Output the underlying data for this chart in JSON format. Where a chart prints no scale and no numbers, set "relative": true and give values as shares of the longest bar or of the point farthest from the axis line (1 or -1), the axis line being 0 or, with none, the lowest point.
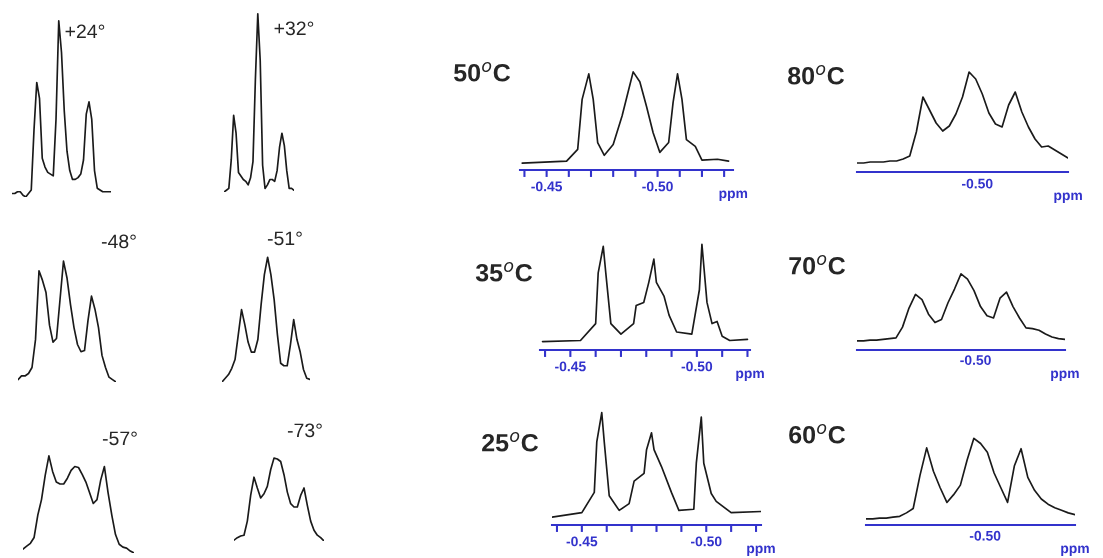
{
  "chart_data": [
    {
      "type": "line",
      "title": "+24°",
      "relative": true,
      "tick_labels": false,
      "categories": [
        null,
        null,
        null,
        null,
        null,
        null,
        null,
        null,
        null,
        null,
        null,
        null,
        null,
        null,
        null,
        null,
        null,
        null,
        null,
        null,
        null,
        null,
        null,
        null,
        null,
        null,
        null,
        null,
        null,
        null,
        null,
        null,
        null,
        null,
        null,
        null,
        null
      ],
      "series": [
        {
          "color": "#1a1a1a",
          "values": [
            0.02,
            0.02,
            0.03,
            0.03,
            0.01,
            0,
            0.02,
            0.04,
            0.38,
            0.65,
            0.56,
            0.22,
            0.17,
            0.14,
            0.13,
            0.12,
            0.44,
            1,
            0.82,
            0.49,
            0.26,
            0.15,
            0.1,
            0.1,
            0.11,
            0.13,
            0.21,
            0.47,
            0.54,
            0.44,
            0.15,
            0.05,
            0.04,
            0.03,
            0.03,
            0.03,
            0.03
          ]
        }
      ]
    },
    {
      "type": "line",
      "title": "+32°",
      "relative": true,
      "tick_labels": false,
      "categories": [
        null,
        null,
        null,
        null,
        null,
        null,
        null,
        null,
        null,
        null,
        null,
        null,
        null,
        null,
        null,
        null,
        null,
        null,
        null,
        null,
        null,
        null,
        null,
        null,
        null,
        null,
        null,
        null,
        null,
        null
      ],
      "series": [
        {
          "color": "#1a1a1a",
          "values": [
            0,
            0.01,
            0.02,
            0.18,
            0.43,
            0.33,
            0.11,
            0.09,
            0.07,
            0.06,
            0.04,
            0.08,
            0.17,
            0.63,
            1,
            0.74,
            0.15,
            0.02,
            0.04,
            0.07,
            0.07,
            0.06,
            0.12,
            0.25,
            0.33,
            0.26,
            0.12,
            0.02,
            0.02,
            0.01
          ]
        }
      ]
    },
    {
      "type": "line",
      "title": "50$^{o}$C",
      "relative": true,
      "tick_labels": "x",
      "xlabel": "ppm",
      "xlim": [
        -0.438,
        -0.534
      ],
      "xticks": [
        {
          "value": -0.44,
          "label": null
        },
        {
          "value": -0.45,
          "label": "-0.45"
        },
        {
          "value": -0.46,
          "label": null
        },
        {
          "value": -0.47,
          "label": null
        },
        {
          "value": -0.48,
          "label": null
        },
        {
          "value": -0.49,
          "label": null
        },
        {
          "value": -0.5,
          "label": "-0.50"
        },
        {
          "value": -0.51,
          "label": null
        },
        {
          "value": -0.52,
          "label": null
        },
        {
          "value": -0.53,
          "label": null
        }
      ],
      "series": [
        {
          "color": "#1a1a1a",
          "x": [
            -0.439,
            -0.459,
            -0.464,
            -0.466,
            -0.469,
            -0.471,
            -0.473,
            -0.476,
            -0.48,
            -0.484,
            -0.487,
            -0.489,
            -0.492,
            -0.495,
            -0.498,
            -0.501,
            -0.505,
            -0.507,
            -0.509,
            -0.511,
            -0.513,
            -0.517,
            -0.52,
            -0.527,
            -0.532
          ],
          "values": [
            0.07,
            0.09,
            0.21,
            0.72,
            0.98,
            0.72,
            0.28,
            0.15,
            0.26,
            0.55,
            0.82,
            1,
            0.9,
            0.65,
            0.38,
            0.18,
            0.28,
            0.69,
            0.98,
            0.72,
            0.31,
            0.24,
            0.1,
            0.11,
            0.09
          ]
        }
      ]
    },
    {
      "type": "line",
      "title": "80$^{o}$C",
      "relative": true,
      "tick_labels": false,
      "xlabel": "ppm",
      "annotations": [
        "-0.50"
      ],
      "categories": [
        null,
        null,
        null,
        null,
        null,
        null,
        null,
        null,
        null,
        null,
        null,
        null,
        null,
        null,
        null,
        null,
        null,
        null,
        null,
        null,
        null,
        null,
        null,
        null,
        null,
        null,
        null,
        null,
        null,
        null,
        null,
        null,
        null
      ],
      "series": [
        {
          "color": "#1a1a1a",
          "values": [
            0.09,
            0.09,
            0.1,
            0.1,
            0.1,
            0.11,
            0.11,
            0.13,
            0.16,
            0.4,
            0.75,
            0.62,
            0.49,
            0.41,
            0.46,
            0.58,
            0.75,
            1,
            0.93,
            0.78,
            0.59,
            0.48,
            0.45,
            0.67,
            0.8,
            0.6,
            0.45,
            0.33,
            0.25,
            0.26,
            0.22,
            0.18,
            0.14
          ]
        }
      ]
    },
    {
      "type": "line",
      "title": "-48°",
      "relative": true,
      "tick_labels": false,
      "categories": [
        null,
        null,
        null,
        null,
        null,
        null,
        null,
        null,
        null,
        null,
        null,
        null,
        null,
        null,
        null,
        null,
        null,
        null,
        null,
        null,
        null,
        null,
        null,
        null,
        null,
        null,
        null,
        null,
        null
      ],
      "series": [
        {
          "color": "#1a1a1a",
          "values": [
            0.02,
            0.05,
            0.05,
            0.07,
            0.12,
            0.35,
            0.92,
            0.84,
            0.74,
            0.47,
            0.33,
            0.36,
            0.68,
            1,
            0.86,
            0.64,
            0.45,
            0.31,
            0.25,
            0.26,
            0.51,
            0.71,
            0.6,
            0.45,
            0.22,
            0.12,
            0.04,
            0.02,
            0
          ]
        }
      ]
    },
    {
      "type": "line",
      "title": "-51°",
      "relative": true,
      "tick_labels": false,
      "categories": [
        null,
        null,
        null,
        null,
        null,
        null,
        null,
        null,
        null,
        null,
        null,
        null,
        null,
        null,
        null,
        null,
        null,
        null,
        null,
        null,
        null,
        null,
        null,
        null,
        null,
        null,
        null,
        null
      ],
      "series": [
        {
          "color": "#1a1a1a",
          "values": [
            0,
            0.03,
            0.06,
            0.11,
            0.18,
            0.38,
            0.58,
            0.46,
            0.32,
            0.24,
            0.24,
            0.34,
            0.62,
            0.86,
            1,
            0.86,
            0.66,
            0.38,
            0.15,
            0.13,
            0.13,
            0.3,
            0.5,
            0.34,
            0.24,
            0.1,
            0.03,
            0.02
          ]
        }
      ]
    },
    {
      "type": "line",
      "title": "35$^{o}$C",
      "relative": true,
      "tick_labels": "x",
      "xlabel": "ppm",
      "xlim": [
        -0.438,
        -0.521
      ],
      "xticks": [
        {
          "value": -0.44,
          "label": null
        },
        {
          "value": -0.45,
          "label": "-0.45"
        },
        {
          "value": -0.46,
          "label": null
        },
        {
          "value": -0.47,
          "label": null
        },
        {
          "value": -0.48,
          "label": null
        },
        {
          "value": -0.49,
          "label": null
        },
        {
          "value": -0.5,
          "label": "-0.50"
        },
        {
          "value": -0.51,
          "label": null
        },
        {
          "value": -0.52,
          "label": null
        }
      ],
      "series": [
        {
          "color": "#1a1a1a",
          "x": [
            -0.439,
            -0.454,
            -0.46,
            -0.461,
            -0.463,
            -0.464,
            -0.466,
            -0.47,
            -0.475,
            -0.476,
            -0.479,
            -0.481,
            -0.483,
            -0.484,
            -0.487,
            -0.489,
            -0.492,
            -0.498,
            -0.501,
            -0.502,
            -0.504,
            -0.506,
            -0.508,
            -0.51,
            -0.513,
            -0.52
          ],
          "values": [
            0.08,
            0.09,
            0.25,
            0.73,
            0.98,
            0.73,
            0.25,
            0.15,
            0.25,
            0.42,
            0.45,
            0.64,
            0.86,
            0.64,
            0.51,
            0.33,
            0.17,
            0.15,
            0.57,
            1,
            0.45,
            0.25,
            0.27,
            0.13,
            0.09,
            0.1
          ]
        }
      ]
    },
    {
      "type": "line",
      "title": "70$^{o}$C",
      "relative": true,
      "tick_labels": false,
      "xlabel": "ppm",
      "annotations": [
        "-0.50"
      ],
      "categories": [
        null,
        null,
        null,
        null,
        null,
        null,
        null,
        null,
        null,
        null,
        null,
        null,
        null,
        null,
        null,
        null,
        null,
        null,
        null,
        null,
        null,
        null,
        null,
        null,
        null,
        null,
        null,
        null,
        null,
        null,
        null,
        null,
        null
      ],
      "series": [
        {
          "color": "#1a1a1a",
          "values": [
            0.12,
            0.12,
            0.13,
            0.13,
            0.14,
            0.15,
            0.16,
            0.3,
            0.55,
            0.73,
            0.66,
            0.47,
            0.36,
            0.4,
            0.62,
            0.8,
            1,
            0.93,
            0.78,
            0.57,
            0.45,
            0.42,
            0.68,
            0.76,
            0.57,
            0.42,
            0.29,
            0.28,
            0.26,
            0.21,
            0.17,
            0.15,
            0.14
          ]
        }
      ]
    },
    {
      "type": "line",
      "title": "-57°",
      "relative": true,
      "tick_labels": false,
      "categories": [
        null,
        null,
        null,
        null,
        null,
        null,
        null,
        null,
        null,
        null,
        null,
        null,
        null,
        null,
        null,
        null,
        null,
        null,
        null,
        null,
        null,
        null,
        null,
        null,
        null,
        null,
        null,
        null,
        null,
        null,
        null
      ],
      "series": [
        {
          "color": "#1a1a1a",
          "values": [
            0.04,
            0.07,
            0.1,
            0.16,
            0.39,
            0.55,
            0.8,
            1,
            0.84,
            0.73,
            0.71,
            0.71,
            0.77,
            0.85,
            0.89,
            0.88,
            0.81,
            0.73,
            0.62,
            0.51,
            0.55,
            0.75,
            0.89,
            0.62,
            0.39,
            0.19,
            0.09,
            0.06,
            0.05,
            0.02,
            0
          ]
        }
      ]
    },
    {
      "type": "line",
      "title": "-73°",
      "relative": true,
      "tick_labels": false,
      "categories": [
        null,
        null,
        null,
        null,
        null,
        null,
        null,
        null,
        null,
        null,
        null,
        null,
        null,
        null,
        null,
        null,
        null,
        null,
        null,
        null,
        null,
        null,
        null,
        null,
        null,
        null,
        null,
        null
      ],
      "series": [
        {
          "color": "#1a1a1a",
          "values": [
            0.01,
            0.04,
            0.06,
            0.07,
            0.24,
            0.55,
            0.77,
            0.64,
            0.52,
            0.57,
            0.66,
            0.86,
            1,
            0.99,
            0.96,
            0.8,
            0.59,
            0.45,
            0.41,
            0.41,
            0.55,
            0.64,
            0.43,
            0.24,
            0.13,
            0.07,
            0.04,
            0
          ]
        }
      ]
    },
    {
      "type": "line",
      "title": "25$^{o}$C",
      "relative": true,
      "tick_labels": "x",
      "xlabel": "ppm",
      "xlim": [
        -0.438,
        -0.522
      ],
      "xticks": [
        {
          "value": -0.44,
          "label": null
        },
        {
          "value": -0.45,
          "label": "-0.45"
        },
        {
          "value": -0.46,
          "label": null
        },
        {
          "value": -0.47,
          "label": null
        },
        {
          "value": -0.48,
          "label": null
        },
        {
          "value": -0.49,
          "label": null
        },
        {
          "value": -0.5,
          "label": "-0.50"
        },
        {
          "value": -0.51,
          "label": null
        },
        {
          "value": -0.52,
          "label": null
        }
      ],
      "series": [
        {
          "color": "#1a1a1a",
          "x": [
            -0.438,
            -0.45,
            -0.455,
            -0.456,
            -0.458,
            -0.459,
            -0.461,
            -0.465,
            -0.469,
            -0.471,
            -0.475,
            -0.476,
            -0.478,
            -0.479,
            -0.482,
            -0.486,
            -0.489,
            -0.495,
            -0.496,
            -0.498,
            -0.499,
            -0.502,
            -0.504,
            -0.51,
            -0.522
          ],
          "values": [
            0.07,
            0.11,
            0.29,
            0.74,
            1,
            0.74,
            0.26,
            0.13,
            0.19,
            0.39,
            0.46,
            0.67,
            0.82,
            0.67,
            0.52,
            0.29,
            0.13,
            0.14,
            0.55,
            0.96,
            0.55,
            0.28,
            0.21,
            0.11,
            0.12
          ]
        }
      ]
    },
    {
      "type": "line",
      "title": "60$^{o}$C",
      "relative": true,
      "tick_labels": false,
      "xlabel": "ppm",
      "annotations": [
        "-0.50"
      ],
      "categories": [
        null,
        null,
        null,
        null,
        null,
        null,
        null,
        null,
        null,
        null,
        null,
        null,
        null,
        null,
        null,
        null,
        null,
        null,
        null,
        null,
        null,
        null,
        null,
        null,
        null,
        null,
        null,
        null,
        null,
        null,
        null,
        null
      ],
      "series": [
        {
          "color": "#1a1a1a",
          "values": [
            0.07,
            0.07,
            0.08,
            0.08,
            0.09,
            0.1,
            0.14,
            0.19,
            0.57,
            0.89,
            0.62,
            0.43,
            0.26,
            0.35,
            0.46,
            0.75,
            1,
            0.94,
            0.84,
            0.6,
            0.43,
            0.26,
            0.68,
            0.88,
            0.55,
            0.4,
            0.3,
            0.24,
            0.2,
            0.17,
            0.14,
            0.12
          ]
        }
      ]
    }
  ]
}
